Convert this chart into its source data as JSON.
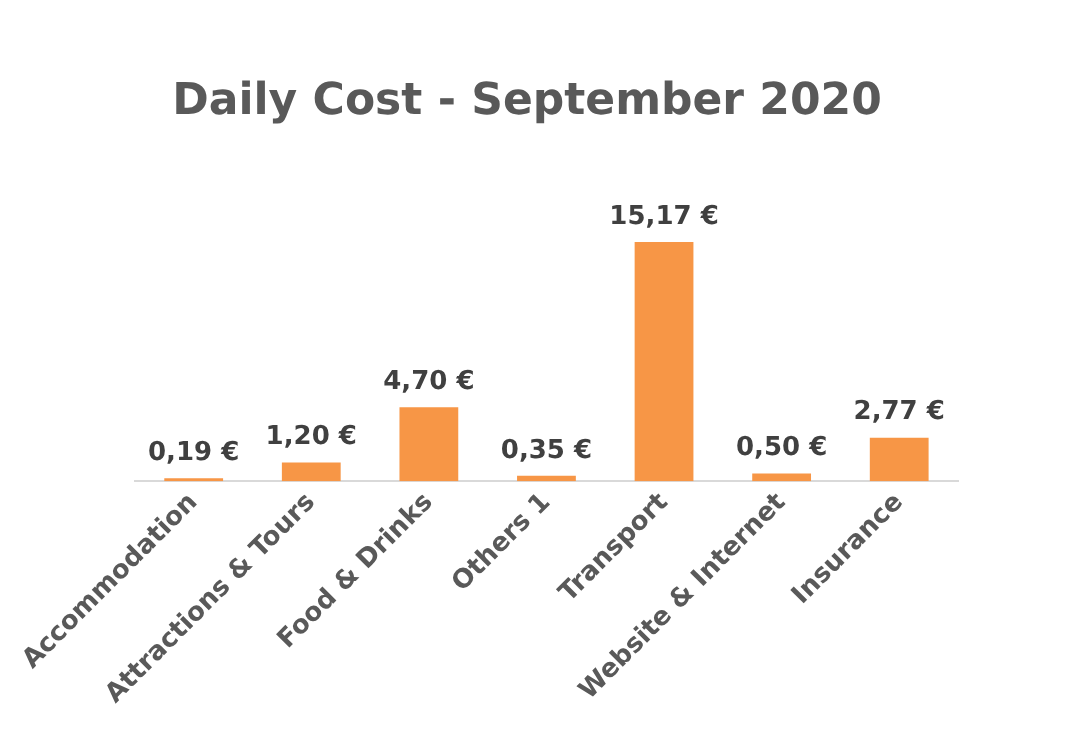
{
  "chart_data": {
    "type": "bar",
    "title": "Daily Cost - September 2020",
    "categories": [
      "Accommodation",
      "Attractions & Tours",
      "Food & Drinks",
      "Others 1",
      "Transport",
      "Website & Internet",
      "Insurance"
    ],
    "values": [
      0.19,
      1.2,
      4.7,
      0.35,
      15.17,
      0.5,
      2.77
    ],
    "value_labels": [
      "0,19 €",
      "1,20 €",
      "4,70 €",
      "0,35 €",
      "15,17 €",
      "0,50 €",
      "2,77 €"
    ],
    "color": "#f79646",
    "grid": false,
    "legend": false,
    "tick_labels": "x"
  }
}
